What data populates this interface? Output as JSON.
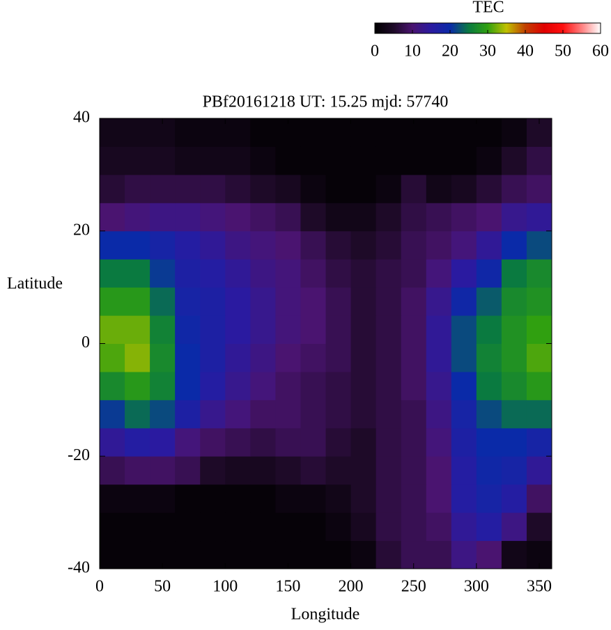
{
  "chart_data": {
    "type": "heatmap",
    "title": "PBf20161218  UT: 15.25  mjd: 57740",
    "x_label": "Longitude",
    "y_label": "Latitude",
    "colorbar_label": "TEC",
    "x": [
      10,
      30,
      50,
      70,
      90,
      110,
      130,
      150,
      170,
      190,
      210,
      230,
      250,
      270,
      290,
      310,
      330,
      350
    ],
    "y": [
      -37.5,
      -32.5,
      -27.5,
      -22.5,
      -17.5,
      -12.5,
      -7.5,
      -2.5,
      2.5,
      7.5,
      12.5,
      17.5,
      22.5,
      27.5,
      32.5,
      37.5
    ],
    "z": [
      [
        1,
        1,
        1,
        1,
        1,
        1,
        1,
        1,
        1,
        1,
        2,
        6,
        8,
        8,
        12,
        10,
        3,
        2
      ],
      [
        1,
        1,
        1,
        1,
        1,
        1,
        1,
        1,
        1,
        2,
        4,
        7,
        8,
        9,
        14,
        16,
        12,
        5
      ],
      [
        2,
        2,
        2,
        1,
        1,
        1,
        1,
        2,
        2,
        3,
        5,
        7,
        8,
        10,
        16,
        18,
        16,
        9
      ],
      [
        8,
        9,
        9,
        8,
        5,
        4,
        4,
        5,
        6,
        5,
        5,
        7,
        8,
        10,
        16,
        19,
        18,
        14
      ],
      [
        14,
        16,
        15,
        11,
        9,
        8,
        7,
        8,
        8,
        6,
        5,
        7,
        8,
        11,
        17,
        20,
        20,
        18
      ],
      [
        21,
        24,
        22,
        17,
        13,
        11,
        9,
        9,
        8,
        7,
        6,
        7,
        8,
        12,
        18,
        22,
        24,
        24
      ],
      [
        27,
        29,
        26,
        20,
        16,
        13,
        11,
        9,
        8,
        7,
        6,
        7,
        9,
        13,
        20,
        25,
        27,
        29
      ],
      [
        31,
        33,
        27,
        20,
        17,
        14,
        12,
        10,
        9,
        8,
        6,
        7,
        9,
        14,
        22,
        26,
        28,
        31
      ],
      [
        32,
        32,
        26,
        19,
        17,
        15,
        13,
        11,
        10,
        8,
        6,
        7,
        9,
        14,
        22,
        25,
        28,
        30
      ],
      [
        29,
        29,
        24,
        18,
        17,
        15,
        13,
        11,
        10,
        8,
        6,
        7,
        9,
        13,
        19,
        23,
        27,
        28
      ],
      [
        25,
        25,
        21,
        17,
        16,
        14,
        12,
        11,
        9,
        7,
        6,
        7,
        8,
        11,
        15,
        19,
        25,
        27
      ],
      [
        20,
        20,
        18,
        16,
        14,
        12,
        11,
        10,
        8,
        6,
        5,
        6,
        8,
        9,
        11,
        14,
        20,
        22
      ],
      [
        10,
        11,
        12,
        12,
        11,
        10,
        9,
        8,
        5,
        3,
        3,
        5,
        7,
        8,
        9,
        10,
        13,
        14
      ],
      [
        6,
        7,
        7,
        7,
        7,
        6,
        5,
        4,
        2,
        1,
        1,
        2,
        6,
        3,
        4,
        6,
        8,
        9
      ],
      [
        4,
        4,
        4,
        3,
        3,
        3,
        2,
        1,
        1,
        1,
        1,
        1,
        1,
        1,
        1,
        2,
        5,
        7
      ],
      [
        3,
        3,
        3,
        2,
        2,
        2,
        1,
        1,
        1,
        1,
        1,
        1,
        1,
        1,
        1,
        1,
        2,
        5
      ]
    ],
    "xlim": [
      0,
      360
    ],
    "xticks": [
      0,
      50,
      100,
      150,
      200,
      250,
      300,
      350
    ],
    "ylim": [
      -40,
      40
    ],
    "yticks": [
      -40,
      -20,
      0,
      20,
      40
    ],
    "zlim": [
      0,
      60
    ],
    "zticks": [
      0,
      10,
      20,
      30,
      40,
      50,
      60
    ],
    "colormap": [
      "#000000",
      "#1e0a28",
      "#4a1470",
      "#2a1aa0",
      "#0a2aa8",
      "#0a7a40",
      "#30a010",
      "#c0c000",
      "#c04000",
      "#e00000",
      "#ff1010",
      "#ff8080",
      "#ffffff"
    ]
  }
}
